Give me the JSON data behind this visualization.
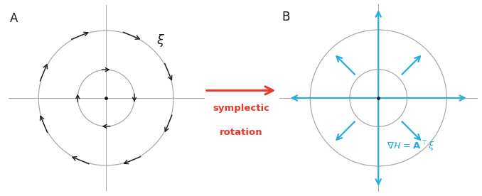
{
  "bg_color": "#ffffff",
  "gray_color": "#aaaaaa",
  "black_color": "#1a1a1a",
  "cyan_color": "#29abe2",
  "red_color": "#e8392a",
  "panel_A": {
    "label": "A",
    "r_outer": 1.0,
    "r_inner": 0.42,
    "xi_label": "ξ",
    "circle_color": "#aaaaaa"
  },
  "panel_B": {
    "label": "B",
    "r_outer": 1.0,
    "r_inner": 0.42,
    "circle_color": "#aaaaaa",
    "annotation": "$\\nabla\\mathcal{H} = \\mathbf{A}^\\top\\xi$"
  },
  "middle_arrow": {
    "color": "#e8392a",
    "label_line1": "symplectic",
    "label_line2": "rotation"
  }
}
